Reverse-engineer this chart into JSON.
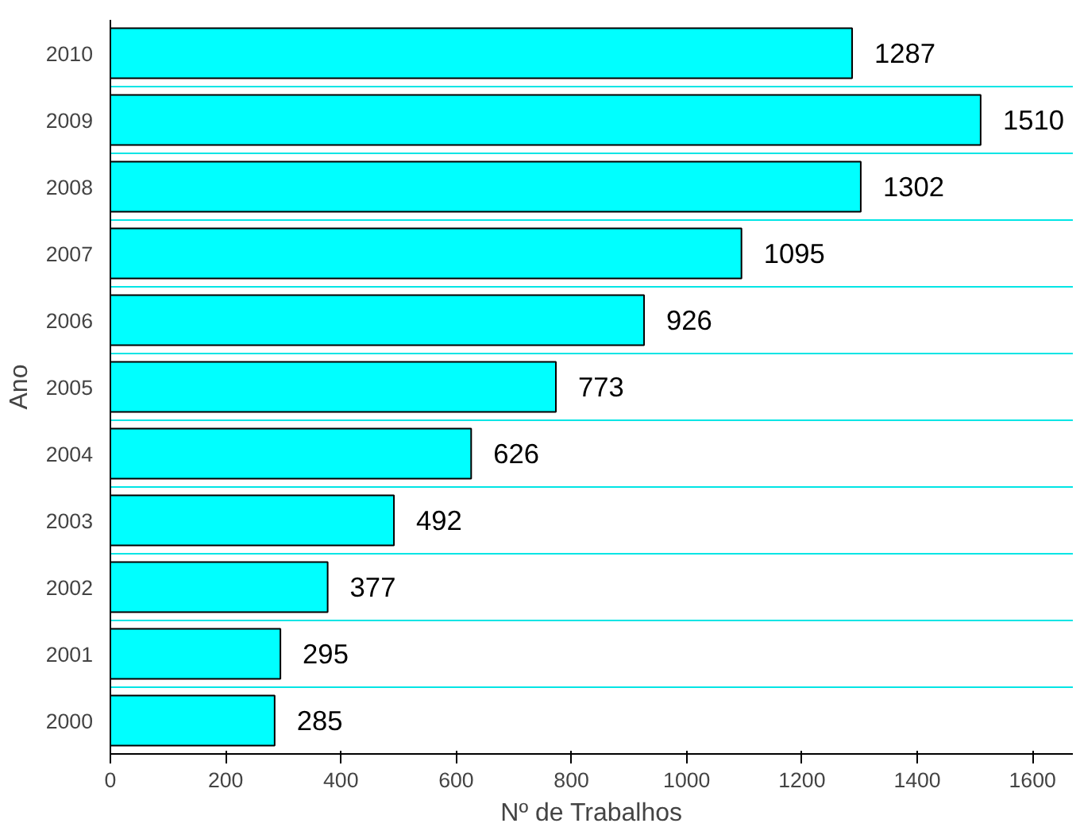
{
  "chart_data": {
    "type": "bar",
    "orientation": "horizontal",
    "xlabel": "Nº de Trabalhos",
    "ylabel": "Ano",
    "categories": [
      "2010",
      "2009",
      "2008",
      "2007",
      "2006",
      "2005",
      "2004",
      "2003",
      "2002",
      "2001",
      "2000"
    ],
    "values": [
      1287,
      1510,
      1302,
      1095,
      926,
      773,
      626,
      492,
      377,
      295,
      285
    ],
    "color": "#00ffff",
    "data_labels": true,
    "grid": "y",
    "xlim": [
      0,
      1670
    ],
    "xticks": [
      0,
      200,
      400,
      600,
      800,
      1000,
      1200,
      1400,
      1600
    ]
  }
}
